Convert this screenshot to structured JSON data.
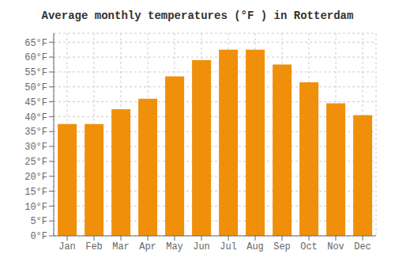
{
  "chart_data": {
    "type": "bar",
    "title": "Average monthly temperatures (°F ) in Rotterdam",
    "categories": [
      "Jan",
      "Feb",
      "Mar",
      "Apr",
      "May",
      "Jun",
      "Jul",
      "Aug",
      "Sep",
      "Oct",
      "Nov",
      "Dec"
    ],
    "values": [
      37.5,
      37.5,
      42.5,
      46.0,
      53.5,
      59.0,
      62.5,
      62.5,
      57.5,
      51.5,
      44.5,
      40.5
    ],
    "color": "#F0900A",
    "ylim": [
      0,
      68
    ],
    "yticks": [
      {
        "value": 0,
        "label": "0°F"
      },
      {
        "value": 5,
        "label": "5°F"
      },
      {
        "value": 10,
        "label": "10°F"
      },
      {
        "value": 15,
        "label": "15°F"
      },
      {
        "value": 20,
        "label": "20°F"
      },
      {
        "value": 25,
        "label": "25°F"
      },
      {
        "value": 30,
        "label": "30°F"
      },
      {
        "value": 35,
        "label": "35°F"
      },
      {
        "value": 40,
        "label": "40°F"
      },
      {
        "value": 45,
        "label": "45°F"
      },
      {
        "value": 50,
        "label": "50°F"
      },
      {
        "value": 55,
        "label": "55°F"
      },
      {
        "value": 60,
        "label": "60°F"
      },
      {
        "value": 65,
        "label": "65°F"
      }
    ],
    "grid": true
  }
}
